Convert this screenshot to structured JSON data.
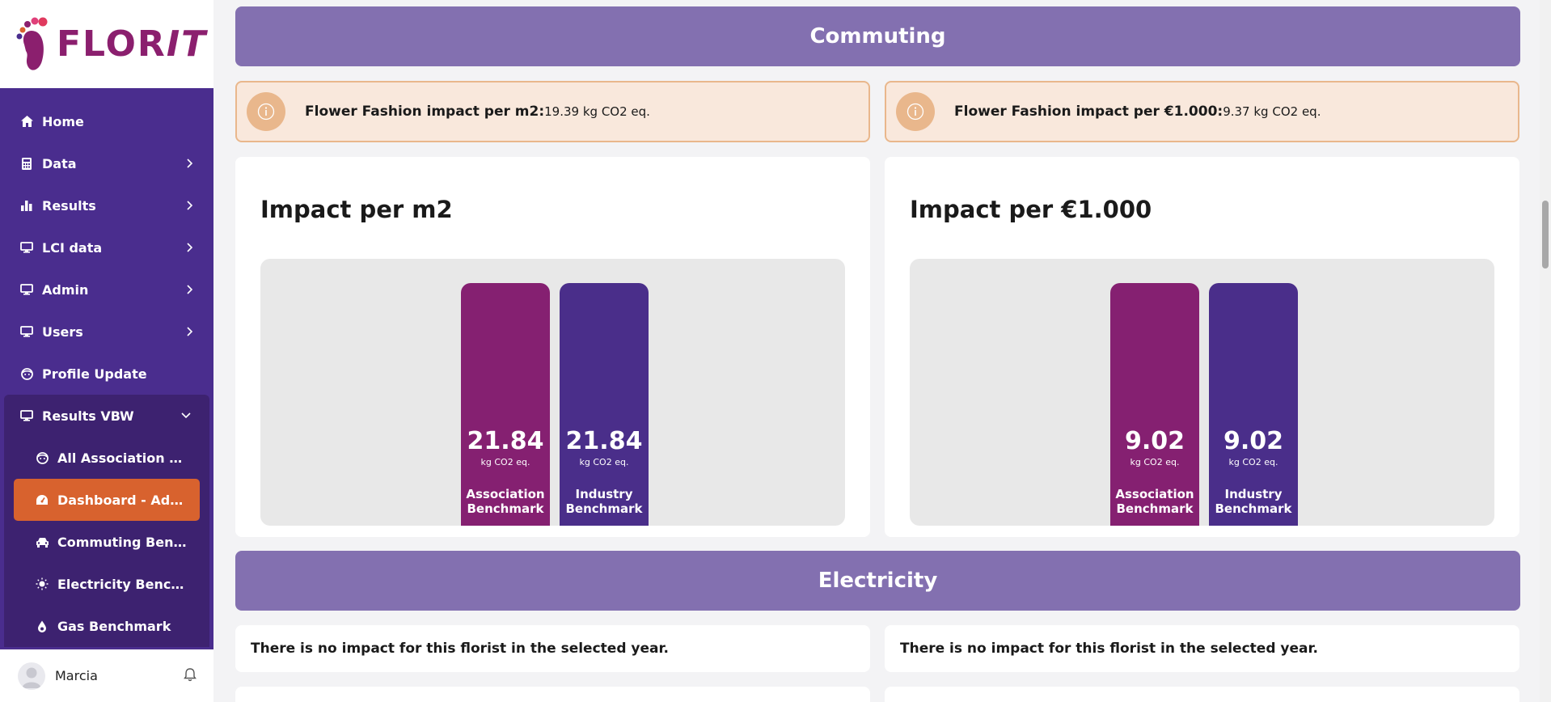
{
  "brand": {
    "name_part1": "FLOR",
    "name_part2": "IT"
  },
  "sidebar": {
    "items": [
      {
        "label": "Home",
        "icon": "home-icon"
      },
      {
        "label": "Data",
        "icon": "calculator-icon"
      },
      {
        "label": "Results",
        "icon": "bar-chart-icon"
      },
      {
        "label": "LCI data",
        "icon": "monitor-icon"
      },
      {
        "label": "Admin",
        "icon": "monitor-icon"
      },
      {
        "label": "Users",
        "icon": "monitor-icon"
      },
      {
        "label": "Profile Update",
        "icon": "face-icon"
      }
    ],
    "group": {
      "label": "Results VBW",
      "children": [
        {
          "label": "All Association Profiles",
          "icon": "face-icon"
        },
        {
          "label": "Dashboard - Admin",
          "icon": "dashboard-icon"
        },
        {
          "label": "Commuting Benchmark",
          "icon": "car-icon"
        },
        {
          "label": "Electricity Benchmark",
          "icon": "bulb-icon"
        },
        {
          "label": "Gas Benchmark",
          "icon": "drop-icon"
        }
      ]
    },
    "user": {
      "name": "Marcia"
    }
  },
  "commuting": {
    "title": "Commuting",
    "info_m2": {
      "label": "Flower Fashion impact per m2:",
      "value": "19.39 kg CO2 eq."
    },
    "info_eur": {
      "label": "Flower Fashion impact per €1.000:",
      "value": "9.37 kg CO2 eq."
    },
    "card_m2": {
      "title": "Impact per m2"
    },
    "card_eur": {
      "title": "Impact per €1.000"
    }
  },
  "electricity": {
    "title": "Electricity",
    "empty_left": "There is no impact for this florist in the selected year.",
    "empty_right": "There is no impact for this florist in the selected year."
  },
  "colors": {
    "sidebar_bg": "#4a2d8e",
    "active_item": "#d8622e",
    "section_header": "#8370b0",
    "association_bar": "#852071",
    "industry_bar": "#4a2e8a",
    "info_bg": "#f9e8dc"
  },
  "chart_data": [
    {
      "type": "bar",
      "categories": [
        "Association Benchmark",
        "Industry Benchmark"
      ],
      "values": [
        21.84,
        21.84
      ],
      "value_labels": [
        "21.84",
        "21.84"
      ],
      "unit": "kg CO2 eq.",
      "title": "Impact per m2",
      "xlabel": "",
      "ylabel": "",
      "grid": false
    },
    {
      "type": "bar",
      "categories": [
        "Association Benchmark",
        "Industry Benchmark"
      ],
      "values": [
        9.02,
        9.02
      ],
      "value_labels": [
        "9.02",
        "9.02"
      ],
      "unit": "kg CO2 eq.",
      "title": "Impact per €1.000",
      "xlabel": "",
      "ylabel": "",
      "grid": false
    }
  ]
}
